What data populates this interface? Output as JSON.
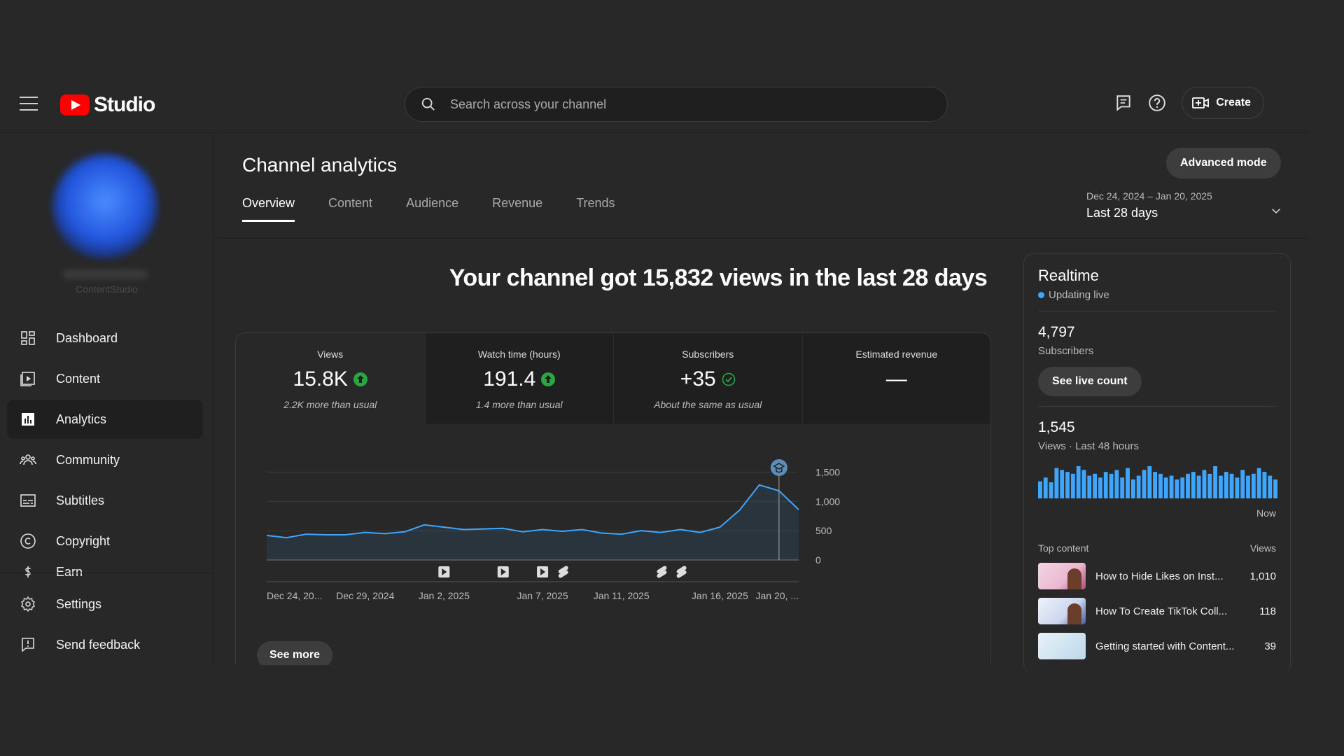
{
  "header": {
    "logo_text": "Studio",
    "search_placeholder": "Search across your channel",
    "create_label": "Create"
  },
  "sidebar": {
    "channel_name": "ContentStudio",
    "items": [
      {
        "label": "Dashboard",
        "icon": "dashboard-icon"
      },
      {
        "label": "Content",
        "icon": "content-icon"
      },
      {
        "label": "Analytics",
        "icon": "analytics-icon",
        "active": true
      },
      {
        "label": "Community",
        "icon": "community-icon"
      },
      {
        "label": "Subtitles",
        "icon": "subtitles-icon"
      },
      {
        "label": "Copyright",
        "icon": "copyright-icon"
      },
      {
        "label": "Earn",
        "icon": "earn-icon"
      }
    ],
    "bottom_items": [
      {
        "label": "Settings",
        "icon": "gear-icon"
      },
      {
        "label": "Send feedback",
        "icon": "feedback-icon"
      }
    ]
  },
  "main": {
    "title": "Channel analytics",
    "advanced_mode": "Advanced mode",
    "tabs": [
      "Overview",
      "Content",
      "Audience",
      "Revenue",
      "Trends"
    ],
    "active_tab": "Overview",
    "date_range": {
      "dates": "Dec 24, 2024 – Jan 20, 2025",
      "label": "Last 28 days"
    },
    "headline": "Your channel got 15,832 views in the last 28 days",
    "metrics": [
      {
        "label": "Views",
        "value": "15.8K",
        "status": "up",
        "note": "2.2K more than usual"
      },
      {
        "label": "Watch time (hours)",
        "value": "191.4",
        "status": "up",
        "note": "1.4 more than usual"
      },
      {
        "label": "Subscribers",
        "value": "+35",
        "status": "same",
        "note": "About the same as usual"
      },
      {
        "label": "Estimated revenue",
        "value": "—",
        "status": "none",
        "note": ""
      }
    ],
    "see_more": "See more"
  },
  "chart_data": {
    "type": "area",
    "x": [
      "Dec 24",
      "Dec 25",
      "Dec 26",
      "Dec 27",
      "Dec 28",
      "Dec 29",
      "Dec 30",
      "Dec 31",
      "Jan 1",
      "Jan 2",
      "Jan 3",
      "Jan 4",
      "Jan 5",
      "Jan 6",
      "Jan 7",
      "Jan 8",
      "Jan 9",
      "Jan 10",
      "Jan 11",
      "Jan 12",
      "Jan 13",
      "Jan 14",
      "Jan 15",
      "Jan 16",
      "Jan 17",
      "Jan 18",
      "Jan 19",
      "Jan 20"
    ],
    "values": [
      420,
      380,
      440,
      430,
      430,
      470,
      450,
      480,
      600,
      560,
      520,
      530,
      540,
      480,
      520,
      490,
      520,
      460,
      440,
      500,
      470,
      520,
      470,
      560,
      850,
      1280,
      1180,
      860
    ],
    "x_tick_labels": [
      "Dec 24, 20...",
      "Dec 29, 2024",
      "Jan 2, 2025",
      "Jan 7, 2025",
      "Jan 11, 2025",
      "Jan 16, 2025",
      "Jan 20, ..."
    ],
    "x_tick_index": [
      0,
      5,
      9,
      14,
      18,
      23,
      27
    ],
    "y_ticks": [
      0,
      500,
      1000,
      1500
    ],
    "ylim": [
      0,
      1600
    ],
    "series_color": "#3ea6ff",
    "grid": true,
    "event_markers": [
      {
        "index": 9,
        "icon": "video-icon"
      },
      {
        "index": 12,
        "icon": "video-icon"
      },
      {
        "index": 14,
        "icon": "video-icon"
      },
      {
        "index": 15,
        "icon": "shorts-icon"
      },
      {
        "index": 20,
        "icon": "shorts-icon"
      },
      {
        "index": 21,
        "icon": "shorts-icon"
      }
    ],
    "milestone_index": 26
  },
  "realtime": {
    "title": "Realtime",
    "status": "Updating live",
    "subscribers": "4,797",
    "subscribers_label": "Subscribers",
    "see_live": "See live count",
    "views": "1,545",
    "views_label": "Views · Last 48 hours",
    "now_label": "Now",
    "spark_values": [
      18,
      22,
      17,
      32,
      30,
      28,
      26,
      34,
      30,
      24,
      26,
      22,
      28,
      26,
      30,
      22,
      32,
      20,
      24,
      30,
      34,
      28,
      26,
      22,
      24,
      20,
      22,
      26,
      28,
      24,
      30,
      26,
      34,
      24,
      28,
      26,
      22,
      30,
      24,
      26,
      32,
      28,
      24,
      20
    ],
    "top_content_label": "Top content",
    "views_col": "Views",
    "top_content": [
      {
        "title": "How to Hide Likes on Inst...",
        "views": "1,010"
      },
      {
        "title": "How To Create TikTok Coll...",
        "views": "118"
      },
      {
        "title": "Getting started with Content...",
        "views": "39"
      }
    ]
  }
}
